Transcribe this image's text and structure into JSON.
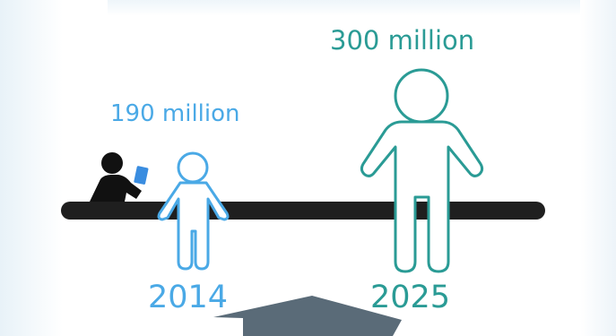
{
  "infographic": {
    "value_2014": "190 million",
    "value_2025": "300 million",
    "year_2014": "2014",
    "year_2025": "2025"
  },
  "icons": [
    "reader-icon",
    "small-person-icon",
    "large-person-icon",
    "pointer-arrow-icon"
  ],
  "colors": {
    "color_2014": "#4aa9e6",
    "color_2025": "#2a9b95",
    "timeline": "#1f1f1f",
    "arrow": "#5a6b78"
  }
}
